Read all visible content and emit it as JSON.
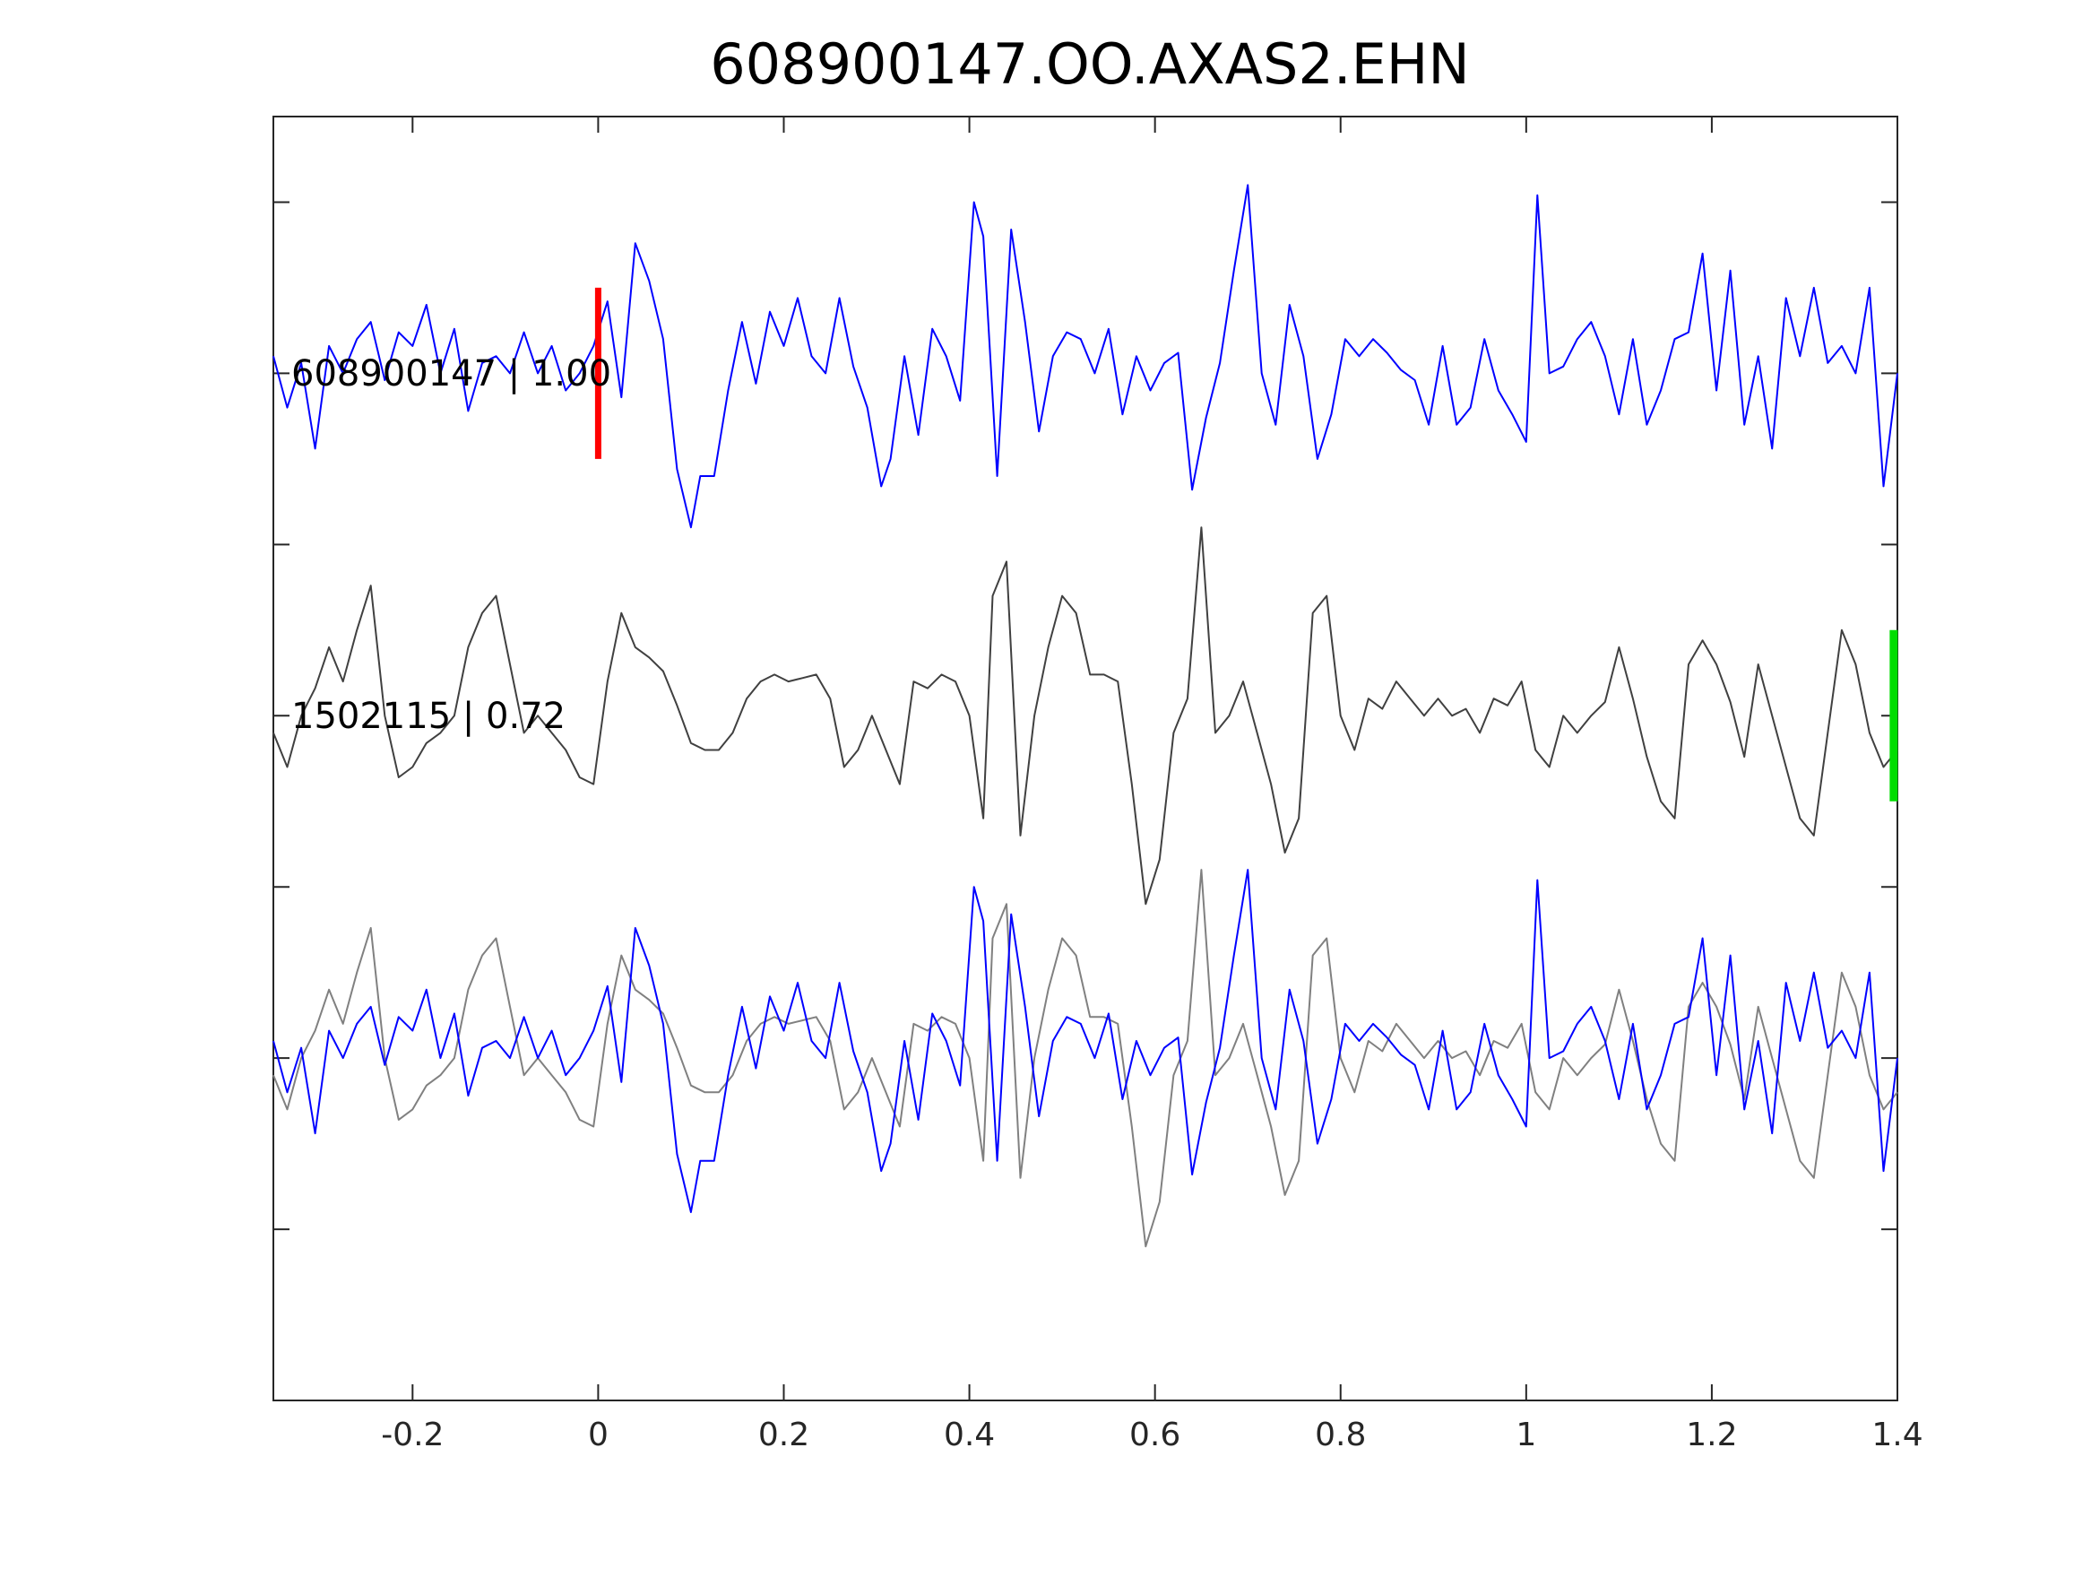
{
  "chart_data": {
    "type": "line",
    "title": "608900147.OO.AXAS2.EHN",
    "xlim": [
      -0.35,
      1.4
    ],
    "xticks": [
      "-0.2",
      "0",
      "0.2",
      "0.4",
      "0.6",
      "0.8",
      "1",
      "1.2",
      "1.4"
    ],
    "xtick_values": [
      -0.2,
      0,
      0.2,
      0.4,
      0.6,
      0.8,
      1,
      1.2,
      1.4
    ],
    "ylim": [
      -0.5,
      3.25
    ],
    "ytick_values": [
      0,
      0.5,
      1,
      1.5,
      2,
      2.5,
      3
    ],
    "grid": false,
    "colors": {
      "primary": "#0000ff",
      "reference": "#404040",
      "overlay_ref": "#808080",
      "pick": "#ff0000",
      "end_marker": "#00dd00"
    },
    "markers": {
      "pick_x": 0,
      "end_x": 1.396
    },
    "series": [
      {
        "trace": "blue",
        "offset": 2.5,
        "x": [
          -0.35,
          -0.335,
          -0.32,
          -0.305,
          -0.29,
          -0.275,
          -0.26,
          -0.245,
          -0.23,
          -0.215,
          -0.2,
          -0.185,
          -0.17,
          -0.155,
          -0.14,
          -0.125,
          -0.11,
          -0.095,
          -0.08,
          -0.065,
          -0.05,
          -0.035,
          -0.02,
          -0.005,
          0.01,
          0.025,
          0.04,
          0.055,
          0.07,
          0.085,
          0.1,
          0.11,
          0.125,
          0.14,
          0.155,
          0.17,
          0.185,
          0.2,
          0.215,
          0.23,
          0.245,
          0.26,
          0.275,
          0.29,
          0.305,
          0.315,
          0.33,
          0.345,
          0.36,
          0.375,
          0.39,
          0.405,
          0.415,
          0.43,
          0.445,
          0.46,
          0.475,
          0.49,
          0.505,
          0.52,
          0.535,
          0.55,
          0.565,
          0.58,
          0.595,
          0.61,
          0.625,
          0.64,
          0.655,
          0.67,
          0.685,
          0.7,
          0.715,
          0.73,
          0.745,
          0.76,
          0.775,
          0.79,
          0.805,
          0.82,
          0.835,
          0.85,
          0.865,
          0.88,
          0.895,
          0.91,
          0.925,
          0.94,
          0.955,
          0.97,
          0.985,
          1.0,
          1.012,
          1.025,
          1.04,
          1.055,
          1.07,
          1.085,
          1.1,
          1.115,
          1.13,
          1.145,
          1.16,
          1.175,
          1.19,
          1.205,
          1.22,
          1.235,
          1.25,
          1.265,
          1.28,
          1.295,
          1.31,
          1.325,
          1.34,
          1.355,
          1.37,
          1.385,
          1.4
        ],
        "y": [
          0.05,
          -0.1,
          0.03,
          -0.22,
          0.08,
          0.0,
          0.1,
          0.15,
          -0.02,
          0.12,
          0.08,
          0.2,
          0.0,
          0.13,
          -0.11,
          0.03,
          0.05,
          0.0,
          0.12,
          0.0,
          0.08,
          -0.05,
          0.0,
          0.08,
          0.21,
          -0.07,
          0.38,
          0.27,
          0.1,
          -0.28,
          -0.45,
          -0.3,
          -0.3,
          -0.05,
          0.15,
          -0.03,
          0.18,
          0.08,
          0.22,
          0.05,
          0.0,
          0.22,
          0.02,
          -0.1,
          -0.33,
          -0.25,
          0.05,
          -0.18,
          0.13,
          0.05,
          -0.08,
          0.5,
          0.4,
          -0.3,
          0.42,
          0.15,
          -0.17,
          0.05,
          0.12,
          0.1,
          0.0,
          0.13,
          -0.12,
          0.05,
          -0.05,
          0.03,
          0.06,
          -0.34,
          -0.13,
          0.03,
          0.3,
          0.55,
          0.0,
          -0.15,
          0.2,
          0.05,
          -0.25,
          -0.12,
          0.1,
          0.05,
          0.1,
          0.06,
          0.01,
          -0.02,
          -0.15,
          0.08,
          -0.15,
          -0.1,
          0.1,
          -0.05,
          -0.12,
          -0.2,
          0.52,
          0.0,
          0.02,
          0.1,
          0.15,
          0.05,
          -0.12,
          0.1,
          -0.15,
          -0.05,
          0.1,
          0.12,
          0.35,
          -0.05,
          0.3,
          -0.15,
          0.05,
          -0.22,
          0.22,
          0.05,
          0.25,
          0.03,
          0.08,
          0.0,
          0.25,
          -0.33,
          0.0
        ]
      },
      {
        "trace": "grey",
        "offset": 1.5,
        "x": [
          -0.35,
          -0.335,
          -0.32,
          -0.305,
          -0.29,
          -0.275,
          -0.26,
          -0.245,
          -0.23,
          -0.215,
          -0.2,
          -0.185,
          -0.17,
          -0.155,
          -0.14,
          -0.125,
          -0.11,
          -0.095,
          -0.08,
          -0.065,
          -0.05,
          -0.035,
          -0.02,
          -0.005,
          0.01,
          0.025,
          0.04,
          0.055,
          0.07,
          0.085,
          0.1,
          0.115,
          0.13,
          0.145,
          0.16,
          0.175,
          0.19,
          0.205,
          0.22,
          0.235,
          0.25,
          0.265,
          0.28,
          0.295,
          0.31,
          0.325,
          0.34,
          0.355,
          0.37,
          0.385,
          0.4,
          0.415,
          0.425,
          0.44,
          0.455,
          0.47,
          0.485,
          0.5,
          0.515,
          0.53,
          0.545,
          0.56,
          0.575,
          0.59,
          0.605,
          0.62,
          0.635,
          0.65,
          0.665,
          0.68,
          0.695,
          0.71,
          0.725,
          0.74,
          0.755,
          0.77,
          0.785,
          0.8,
          0.815,
          0.83,
          0.845,
          0.86,
          0.875,
          0.89,
          0.905,
          0.92,
          0.935,
          0.95,
          0.965,
          0.98,
          0.995,
          1.01,
          1.025,
          1.04,
          1.055,
          1.07,
          1.085,
          1.1,
          1.115,
          1.13,
          1.145,
          1.16,
          1.175,
          1.19,
          1.205,
          1.22,
          1.235,
          1.25,
          1.265,
          1.28,
          1.295,
          1.31,
          1.325,
          1.34,
          1.355,
          1.37,
          1.385,
          1.4
        ],
        "y": [
          -0.05,
          -0.15,
          0.0,
          0.08,
          0.2,
          0.1,
          0.25,
          0.38,
          0.0,
          -0.18,
          -0.15,
          -0.08,
          -0.05,
          0.0,
          0.2,
          0.3,
          0.35,
          0.15,
          -0.05,
          0.0,
          -0.05,
          -0.1,
          -0.18,
          -0.2,
          0.1,
          0.3,
          0.2,
          0.17,
          0.13,
          0.03,
          -0.08,
          -0.1,
          -0.1,
          -0.05,
          0.05,
          0.1,
          0.12,
          0.1,
          0.11,
          0.12,
          0.05,
          -0.15,
          -0.1,
          0.0,
          -0.1,
          -0.2,
          0.1,
          0.08,
          0.12,
          0.1,
          0.0,
          -0.3,
          0.35,
          0.45,
          -0.35,
          0.0,
          0.2,
          0.35,
          0.3,
          0.12,
          0.12,
          0.1,
          -0.2,
          -0.55,
          -0.42,
          -0.05,
          0.05,
          0.55,
          -0.05,
          0.0,
          0.1,
          -0.05,
          -0.2,
          -0.4,
          -0.3,
          0.3,
          0.35,
          0.0,
          -0.1,
          0.05,
          0.02,
          0.1,
          0.05,
          0.0,
          0.05,
          0.0,
          0.02,
          -0.05,
          0.05,
          0.03,
          0.1,
          -0.1,
          -0.15,
          0.0,
          -0.05,
          0.0,
          0.04,
          0.2,
          0.05,
          -0.12,
          -0.25,
          -0.3,
          0.15,
          0.22,
          0.15,
          0.04,
          -0.12,
          0.15,
          0.0,
          -0.15,
          -0.3,
          -0.35,
          -0.05,
          0.25,
          0.15,
          -0.05,
          -0.15,
          -0.1
        ]
      }
    ],
    "trace_labels": [
      "608900147 | 1.00",
      "1502115 | 0.72"
    ]
  }
}
